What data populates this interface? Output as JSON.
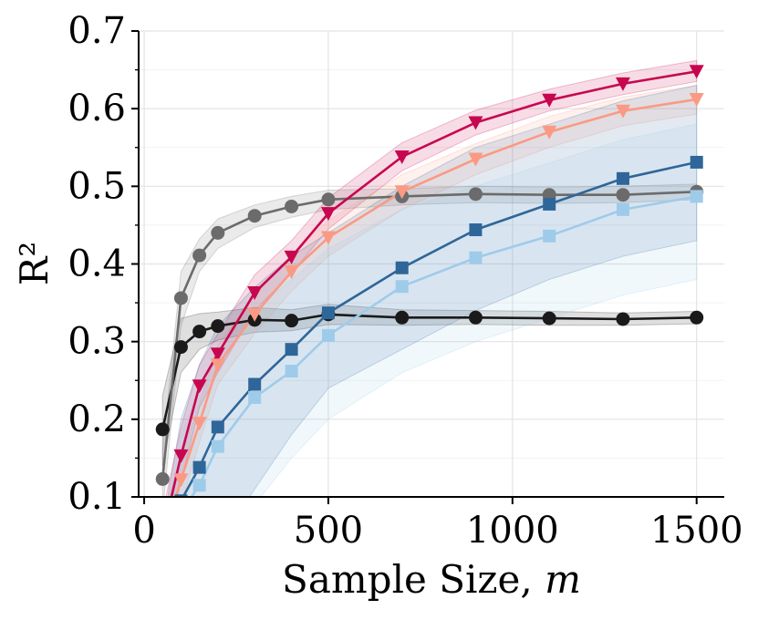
{
  "chart_data": {
    "type": "line",
    "title": "",
    "xlabel": "Sample Size, ",
    "xlabel_var": "m",
    "ylabel": "R²",
    "xlim": [
      -15,
      1575
    ],
    "ylim": [
      0.1,
      0.7
    ],
    "xticks": [
      0,
      500,
      1000,
      1500
    ],
    "xtick_labels": [
      "0",
      "500",
      "1000",
      "1500"
    ],
    "yticks": [
      0.1,
      0.2,
      0.3,
      0.4,
      0.5,
      0.6,
      0.7
    ],
    "ytick_labels": [
      "0.1",
      "0.2",
      "0.3",
      "0.4",
      "0.5",
      "0.6",
      "0.7"
    ],
    "grid": true,
    "legend": "none",
    "x": [
      50,
      100,
      150,
      200,
      300,
      400,
      500,
      700,
      900,
      1100,
      1300,
      1500
    ],
    "series": [
      {
        "marker": "circle",
        "color": "#1a1a1a",
        "values": [
          0.187,
          0.293,
          0.313,
          0.32,
          0.328,
          0.327,
          0.335,
          0.331,
          0.331,
          0.33,
          0.329,
          0.331
        ],
        "lower": [
          0.14,
          0.26,
          0.29,
          0.302,
          0.312,
          0.314,
          0.322,
          0.321,
          0.322,
          0.321,
          0.321,
          0.323
        ],
        "upper": [
          0.23,
          0.33,
          0.336,
          0.338,
          0.344,
          0.341,
          0.348,
          0.341,
          0.34,
          0.339,
          0.337,
          0.339
        ]
      },
      {
        "marker": "circle",
        "color": "#6b6b6b",
        "values": [
          0.123,
          0.356,
          0.411,
          0.44,
          0.462,
          0.474,
          0.483,
          0.487,
          0.49,
          0.489,
          0.489,
          0.493
        ],
        "lower": [
          0.08,
          0.32,
          0.39,
          0.42,
          0.447,
          0.46,
          0.47,
          0.476,
          0.479,
          0.478,
          0.479,
          0.483
        ],
        "upper": [
          0.16,
          0.39,
          0.432,
          0.458,
          0.476,
          0.487,
          0.495,
          0.497,
          0.5,
          0.499,
          0.5,
          0.503
        ]
      },
      {
        "marker": "triangle-down",
        "color": "#c8064f",
        "values": [
          0.05,
          0.153,
          0.243,
          0.284,
          0.363,
          0.409,
          0.465,
          0.538,
          0.582,
          0.611,
          0.632,
          0.648
        ],
        "lower": [
          0.02,
          0.12,
          0.215,
          0.26,
          0.34,
          0.388,
          0.445,
          0.52,
          0.566,
          0.597,
          0.618,
          0.635
        ],
        "upper": [
          0.08,
          0.19,
          0.27,
          0.31,
          0.386,
          0.43,
          0.485,
          0.556,
          0.598,
          0.625,
          0.646,
          0.662
        ]
      },
      {
        "marker": "triangle-down",
        "color": "#fa9a84",
        "values": [
          0.04,
          0.122,
          0.195,
          0.27,
          0.335,
          0.39,
          0.434,
          0.493,
          0.535,
          0.57,
          0.597,
          0.612
        ],
        "lower": [
          0.0,
          0.09,
          0.17,
          0.245,
          0.31,
          0.365,
          0.41,
          0.47,
          0.515,
          0.55,
          0.578,
          0.593
        ],
        "upper": [
          0.07,
          0.15,
          0.22,
          0.295,
          0.36,
          0.412,
          0.456,
          0.515,
          0.555,
          0.59,
          0.615,
          0.63
        ]
      },
      {
        "marker": "square",
        "color": "#2f6699",
        "values": [
          0.03,
          0.095,
          0.138,
          0.19,
          0.245,
          0.29,
          0.337,
          0.395,
          0.444,
          0.477,
          0.51,
          0.531
        ],
        "lower": [
          0.0,
          0.0,
          0.0,
          0.04,
          0.11,
          0.18,
          0.24,
          0.29,
          0.34,
          0.38,
          0.41,
          0.43
        ],
        "upper": [
          0.06,
          0.2,
          0.27,
          0.32,
          0.37,
          0.41,
          0.44,
          0.5,
          0.55,
          0.58,
          0.61,
          0.63
        ]
      },
      {
        "marker": "square",
        "color": "#9fcbea",
        "values": [
          0.02,
          0.08,
          0.115,
          0.165,
          0.228,
          0.262,
          0.308,
          0.371,
          0.408,
          0.436,
          0.47,
          0.487
        ],
        "lower": [
          0.0,
          0.0,
          0.0,
          0.02,
          0.09,
          0.15,
          0.2,
          0.26,
          0.3,
          0.33,
          0.36,
          0.38
        ],
        "upper": [
          0.05,
          0.18,
          0.24,
          0.29,
          0.34,
          0.38,
          0.42,
          0.47,
          0.5,
          0.53,
          0.56,
          0.58
        ]
      }
    ]
  }
}
